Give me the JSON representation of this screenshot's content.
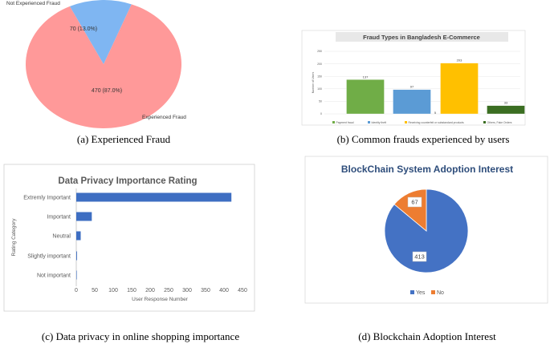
{
  "colors": {
    "pie_a_large": "#ff9999",
    "pie_a_small": "#7fb6f2",
    "bar_green": "#70ad47",
    "bar_blue": "#5b9bd5",
    "bar_orange": "#ffc000",
    "bar_darkgreen": "#3b6e22",
    "hbar_blue": "#3e6ec2",
    "pie_d_yes": "#4472c4",
    "pie_d_no": "#ed7d31",
    "title_blue": "#2e4d7b"
  },
  "captions": {
    "a": "(a) Experienced Fraud",
    "b": "(b) Common frauds experienced by users",
    "c": "(c) Data privacy in online shopping importance",
    "d": "(d) Blockchain Adoption Interest"
  },
  "chart_data": [
    {
      "id": "a",
      "type": "pie",
      "title": "",
      "slices": [
        {
          "label": "Experienced Fraud",
          "value": 470,
          "display": "470 (87.0%)"
        },
        {
          "label": "Not Experienced Fraud",
          "value": 70,
          "display": "70 (13.0%)"
        }
      ]
    },
    {
      "id": "b",
      "type": "bar",
      "title": "Fraud Types in Bangladesh E-Commerce",
      "ylabel": "Number of Users",
      "ylim": [
        0,
        250
      ],
      "yticks": [
        "0",
        "50",
        "100",
        "150",
        "200",
        "250"
      ],
      "categories": [
        "Payment fraud",
        "Identity theft",
        "",
        "Receiving counterfeit or substandard products",
        "Others, Fake Orders"
      ],
      "values": [
        137,
        97,
        5,
        203,
        33
      ],
      "value_labels": [
        "137",
        "97",
        "5",
        "203",
        "33"
      ],
      "legend": [
        "Payment fraud",
        "Identity theft",
        "Receiving counterfeit or substandard products",
        "Others, Fake Orders"
      ]
    },
    {
      "id": "c",
      "type": "bar",
      "orientation": "horizontal",
      "title": "Data Privacy Importance Rating",
      "xlabel": "User Response Number",
      "ylabel": "Rating Category",
      "xlim": [
        0,
        450
      ],
      "xticks": [
        "0",
        "50",
        "100",
        "150",
        "200",
        "250",
        "300",
        "350",
        "400",
        "450"
      ],
      "categories": [
        "Extremly Important",
        "Important",
        "Neutral",
        "Slightly important",
        "Not important"
      ],
      "values": [
        420,
        42,
        12,
        2,
        1
      ]
    },
    {
      "id": "d",
      "type": "pie",
      "title": "BlockChain System Adoption Interest",
      "slices": [
        {
          "label": "Yes",
          "value": 413,
          "display": "413"
        },
        {
          "label": "No",
          "value": 67,
          "display": "67"
        }
      ],
      "legend": [
        "Yes",
        "No"
      ]
    }
  ]
}
